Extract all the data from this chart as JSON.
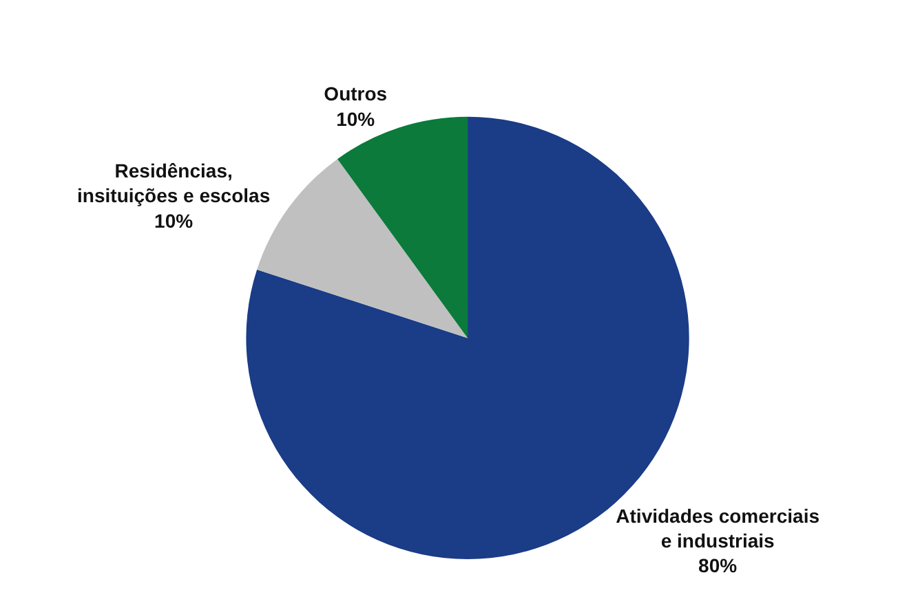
{
  "chart_data": {
    "type": "pie",
    "categories": [
      "Atividades comerciais e industriais",
      "Residências, insituições e escolas",
      "Outros"
    ],
    "values": [
      80,
      10,
      10
    ],
    "value_labels": [
      "80%",
      "10%",
      "10%"
    ],
    "colors": [
      "#1b3c86",
      "#c0c0c0",
      "#0b7a3b"
    ],
    "legend": false
  }
}
